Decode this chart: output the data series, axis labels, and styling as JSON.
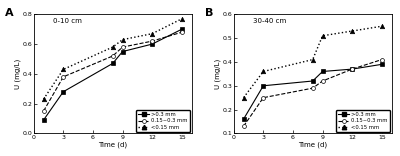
{
  "time": [
    1,
    3,
    8,
    9,
    12,
    15
  ],
  "panel_A": {
    "title": "0-10 cm",
    "label": "A",
    "series": {
      "gt03": [
        0.09,
        0.28,
        0.47,
        0.55,
        0.6,
        0.7
      ],
      "mid": [
        0.15,
        0.38,
        0.52,
        0.58,
        0.62,
        0.68
      ],
      "lt015": [
        0.23,
        0.43,
        0.58,
        0.63,
        0.67,
        0.77
      ]
    },
    "ylim": [
      0.0,
      0.8
    ],
    "yticks": [
      0.0,
      0.2,
      0.4,
      0.6,
      0.8
    ]
  },
  "panel_B": {
    "title": "30-40 cm",
    "label": "B",
    "series": {
      "gt03": [
        0.16,
        0.3,
        0.32,
        0.36,
        0.37,
        0.39
      ],
      "mid": [
        0.13,
        0.25,
        0.29,
        0.32,
        0.37,
        0.41
      ],
      "lt015": [
        0.25,
        0.36,
        0.41,
        0.51,
        0.53,
        0.55
      ]
    },
    "ylim": [
      0.1,
      0.6
    ],
    "yticks": [
      0.1,
      0.2,
      0.3,
      0.4,
      0.5,
      0.6
    ]
  },
  "xlabel": "Time (d)",
  "ylabel": "U (mg/L)",
  "legend": [
    ">0.3 mm",
    "0.15~0.3 mm",
    "<0.15 mm"
  ]
}
